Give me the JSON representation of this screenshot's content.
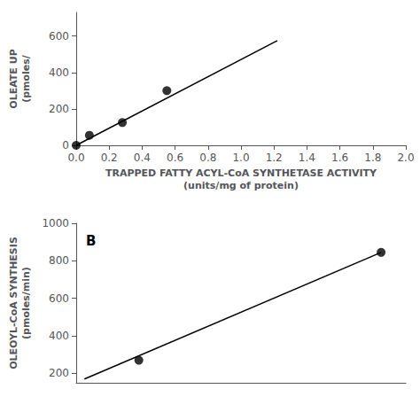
{
  "chart_data": [
    {
      "type": "scatter",
      "xlabel": "TRAPPED FATTY ACYL-CoA SYNTHETASE ACTIVITY\n(units/mg of protein)",
      "ylabel": "OLEATE UP\n(pmoles/",
      "series": [
        {
          "type": "line",
          "color": "#000000",
          "x": [
            0.0,
            1.22
          ],
          "values": [
            0,
            575
          ]
        },
        {
          "type": "scatter",
          "color": "#000000",
          "x": [
            0.0,
            0.08,
            0.28,
            0.55
          ],
          "values": [
            0,
            55,
            125,
            300
          ]
        }
      ],
      "xlim": [
        0,
        2.0
      ],
      "ylim": [
        0,
        730
      ],
      "xticks": [
        {
          "value": 0.0,
          "label": "0.0"
        },
        0.2,
        0.4,
        0.6,
        0.8,
        {
          "value": 1.0,
          "label": "1.0"
        },
        1.2,
        1.4,
        1.6,
        1.8,
        {
          "value": 2.0,
          "label": "2.0"
        }
      ],
      "yticks": [
        0,
        200,
        400,
        600
      ],
      "grid": false
    },
    {
      "type": "scatter",
      "ylabel": "OLEOYL-CoA SYNTHESIS\n(pmoles/min)",
      "annotation": "B",
      "series": [
        {
          "type": "line",
          "color": "#000000",
          "x": [
            0.05,
            1.85
          ],
          "values": [
            170,
            845
          ]
        },
        {
          "type": "scatter",
          "color": "#000000",
          "x": [
            0.38,
            1.85
          ],
          "values": [
            270,
            845
          ]
        }
      ],
      "xlim": [
        0,
        2.0
      ],
      "ylim": [
        150,
        1000
      ],
      "yticks": [
        200,
        400,
        600,
        800,
        1000
      ],
      "tick_labels": "y",
      "grid": false
    }
  ]
}
